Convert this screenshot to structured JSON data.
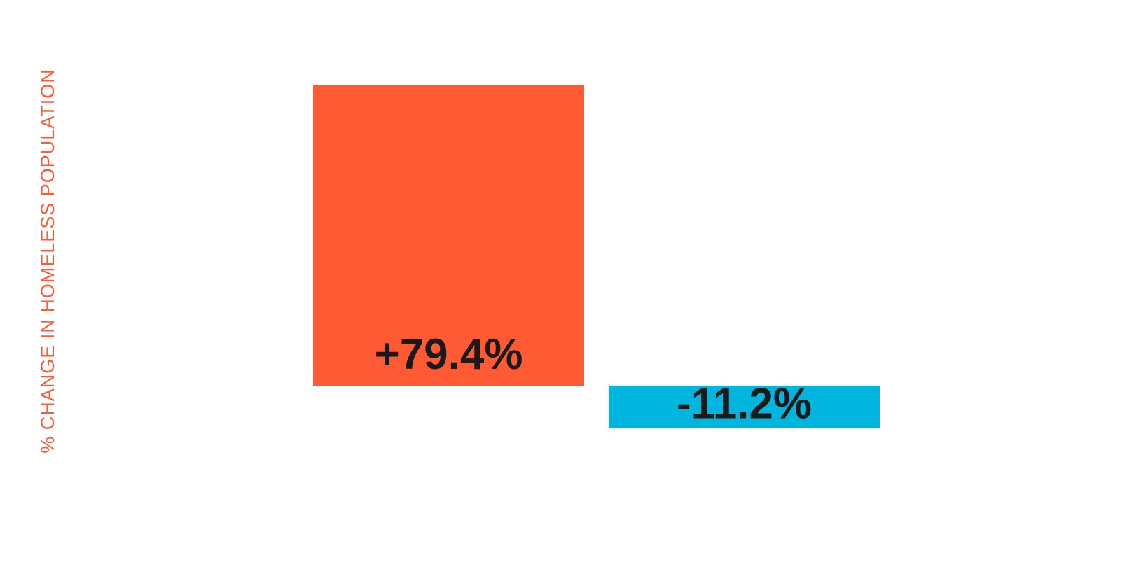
{
  "chart_data": {
    "type": "bar",
    "title": "",
    "xlabel": "",
    "ylabel": "% CHANGE IN HOMELESS POPULATION",
    "ylabel_color": "#FF5A33",
    "grid": false,
    "legend": "none",
    "ylim": [
      -20,
      80
    ],
    "label_color": "#1a1a1a",
    "bars": [
      {
        "value": 79.4,
        "label": "+79.4%",
        "color": "#FF5A33"
      },
      {
        "value": -11.2,
        "label": "-11.2%",
        "color": "#00B5DE"
      }
    ]
  }
}
